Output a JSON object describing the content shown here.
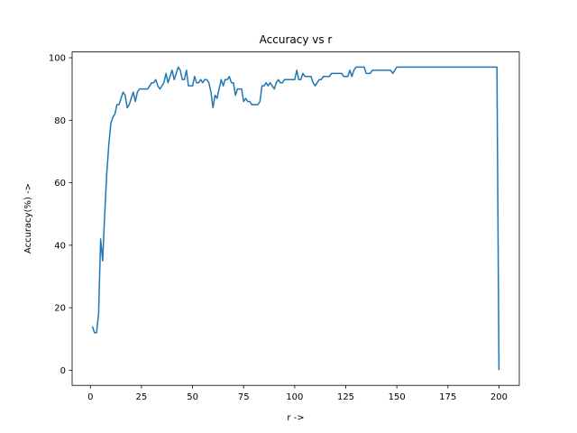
{
  "chart_data": {
    "type": "line",
    "title": "Accuracy vs r",
    "x_label": "r ->",
    "y_label": "Accuracy(%) ->",
    "x": [
      1,
      2,
      3,
      4,
      5,
      6,
      7,
      8,
      9,
      10,
      11,
      12,
      13,
      14,
      15,
      16,
      17,
      18,
      19,
      20,
      21,
      22,
      23,
      24,
      25,
      26,
      27,
      28,
      29,
      30,
      31,
      32,
      33,
      34,
      35,
      36,
      37,
      38,
      39,
      40,
      41,
      42,
      43,
      44,
      45,
      46,
      47,
      48,
      49,
      50,
      51,
      52,
      53,
      54,
      55,
      56,
      57,
      58,
      59,
      60,
      61,
      62,
      63,
      64,
      65,
      66,
      67,
      68,
      69,
      70,
      71,
      72,
      73,
      74,
      75,
      76,
      77,
      78,
      79,
      80,
      81,
      82,
      83,
      84,
      85,
      86,
      87,
      88,
      89,
      90,
      91,
      92,
      93,
      94,
      95,
      96,
      97,
      98,
      99,
      100,
      101,
      102,
      103,
      104,
      105,
      106,
      107,
      108,
      109,
      110,
      111,
      112,
      113,
      114,
      115,
      116,
      117,
      118,
      119,
      120,
      121,
      122,
      123,
      124,
      125,
      126,
      127,
      128,
      129,
      130,
      131,
      132,
      133,
      134,
      135,
      136,
      137,
      138,
      139,
      140,
      141,
      142,
      143,
      144,
      145,
      146,
      147,
      148,
      149,
      150,
      151,
      152,
      153,
      154,
      155,
      156,
      157,
      158,
      159,
      160,
      161,
      162,
      163,
      164,
      165,
      166,
      167,
      168,
      169,
      170,
      171,
      172,
      173,
      174,
      175,
      176,
      177,
      178,
      179,
      180,
      181,
      182,
      183,
      184,
      185,
      186,
      187,
      188,
      189,
      190,
      191,
      192,
      193,
      194,
      195,
      196,
      197,
      198,
      199,
      200
    ],
    "series": [
      {
        "color": "#1f77b4",
        "values": [
          14,
          12,
          12,
          18,
          42,
          35,
          50,
          63,
          72,
          79,
          81,
          82,
          85,
          85,
          87,
          89,
          88,
          84,
          85,
          87,
          89,
          86,
          89,
          90,
          90,
          90,
          90,
          90,
          91,
          92,
          92,
          93,
          91,
          90,
          91,
          92,
          95,
          92,
          94,
          96,
          93,
          95,
          97,
          96,
          93,
          93,
          96,
          91,
          91,
          91,
          94,
          92,
          92,
          93,
          92,
          93,
          93,
          92,
          89,
          84,
          88,
          87,
          90,
          93,
          91,
          93,
          93,
          94,
          92,
          92,
          88,
          90,
          90,
          90,
          86,
          87,
          86,
          86,
          85,
          85,
          85,
          85,
          86,
          91,
          91,
          92,
          91,
          92,
          91,
          90,
          92,
          93,
          92,
          92,
          93,
          93,
          93,
          93,
          93,
          93,
          96,
          93,
          93,
          95,
          94,
          94,
          94,
          94,
          92,
          91,
          92,
          93,
          93,
          94,
          94,
          94,
          94,
          95,
          95,
          95,
          95,
          95,
          95,
          94,
          94,
          94,
          96,
          94,
          96,
          97,
          97,
          97,
          97,
          97,
          95,
          95,
          95,
          96,
          96,
          96,
          96,
          96,
          96,
          96,
          96,
          96,
          96,
          95,
          96,
          97,
          97,
          97,
          97,
          97,
          97,
          97,
          97,
          97,
          97,
          97,
          97,
          97,
          97,
          97,
          97,
          97,
          97,
          97,
          97,
          97,
          97,
          97,
          97,
          97,
          97,
          97,
          97,
          97,
          97,
          97,
          97,
          97,
          97,
          97,
          97,
          97,
          97,
          97,
          97,
          97,
          97,
          97,
          97,
          97,
          97,
          97,
          97,
          97,
          97,
          0
        ]
      }
    ],
    "xlim": [
      -8.95,
      209.95
    ],
    "ylim": [
      -4.85,
      101.85
    ],
    "xticks": [
      0,
      25,
      50,
      75,
      100,
      125,
      150,
      175,
      200
    ],
    "yticks": [
      0,
      20,
      40,
      60,
      80,
      100
    ]
  }
}
